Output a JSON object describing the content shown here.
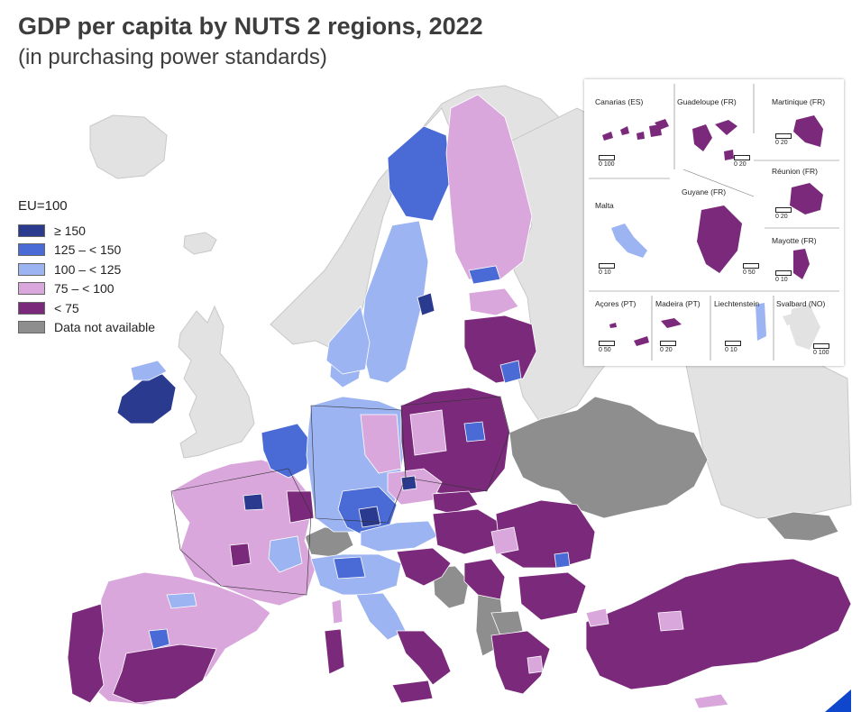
{
  "title": "GDP per capita by NUTS 2 regions, 2022",
  "subtitle": "(in purchasing power standards)",
  "legend": {
    "title": "EU=100",
    "items": [
      {
        "label": "≥ 150",
        "color": "#2a3b8f"
      },
      {
        "label": "125 – < 150",
        "color": "#4a6ad6"
      },
      {
        "label": "100 – < 125",
        "color": "#9db4f2"
      },
      {
        "label": "75 – < 100",
        "color": "#d9a7dc"
      },
      {
        "label": "< 75",
        "color": "#7b2a7b"
      },
      {
        "label": "Data not available",
        "color": "#8e8e8e"
      }
    ]
  },
  "insets": [
    {
      "name": "Canarias (ES)",
      "scale": "0   100"
    },
    {
      "name": "Guadeloupe (FR)",
      "scale": "0   20"
    },
    {
      "name": "Martinique (FR)",
      "scale": "0   20"
    },
    {
      "name": "Réunion (FR)",
      "scale": "0   20"
    },
    {
      "name": "Malta",
      "scale": "0   10"
    },
    {
      "name": "Guyane (FR)",
      "scale": "0   50"
    },
    {
      "name": "Mayotte (FR)",
      "scale": "0   10"
    },
    {
      "name": "Açores (PT)",
      "scale": "0   50"
    },
    {
      "name": "Madeira (PT)",
      "scale": "0   20"
    },
    {
      "name": "Liechtenstein",
      "scale": "0   10"
    },
    {
      "name": "Svalbard (NO)",
      "scale": "0 100"
    }
  ],
  "colors": {
    "background_land": "#e2e2e2",
    "sea": "#ffffff",
    "accent": "#0e47cb"
  }
}
